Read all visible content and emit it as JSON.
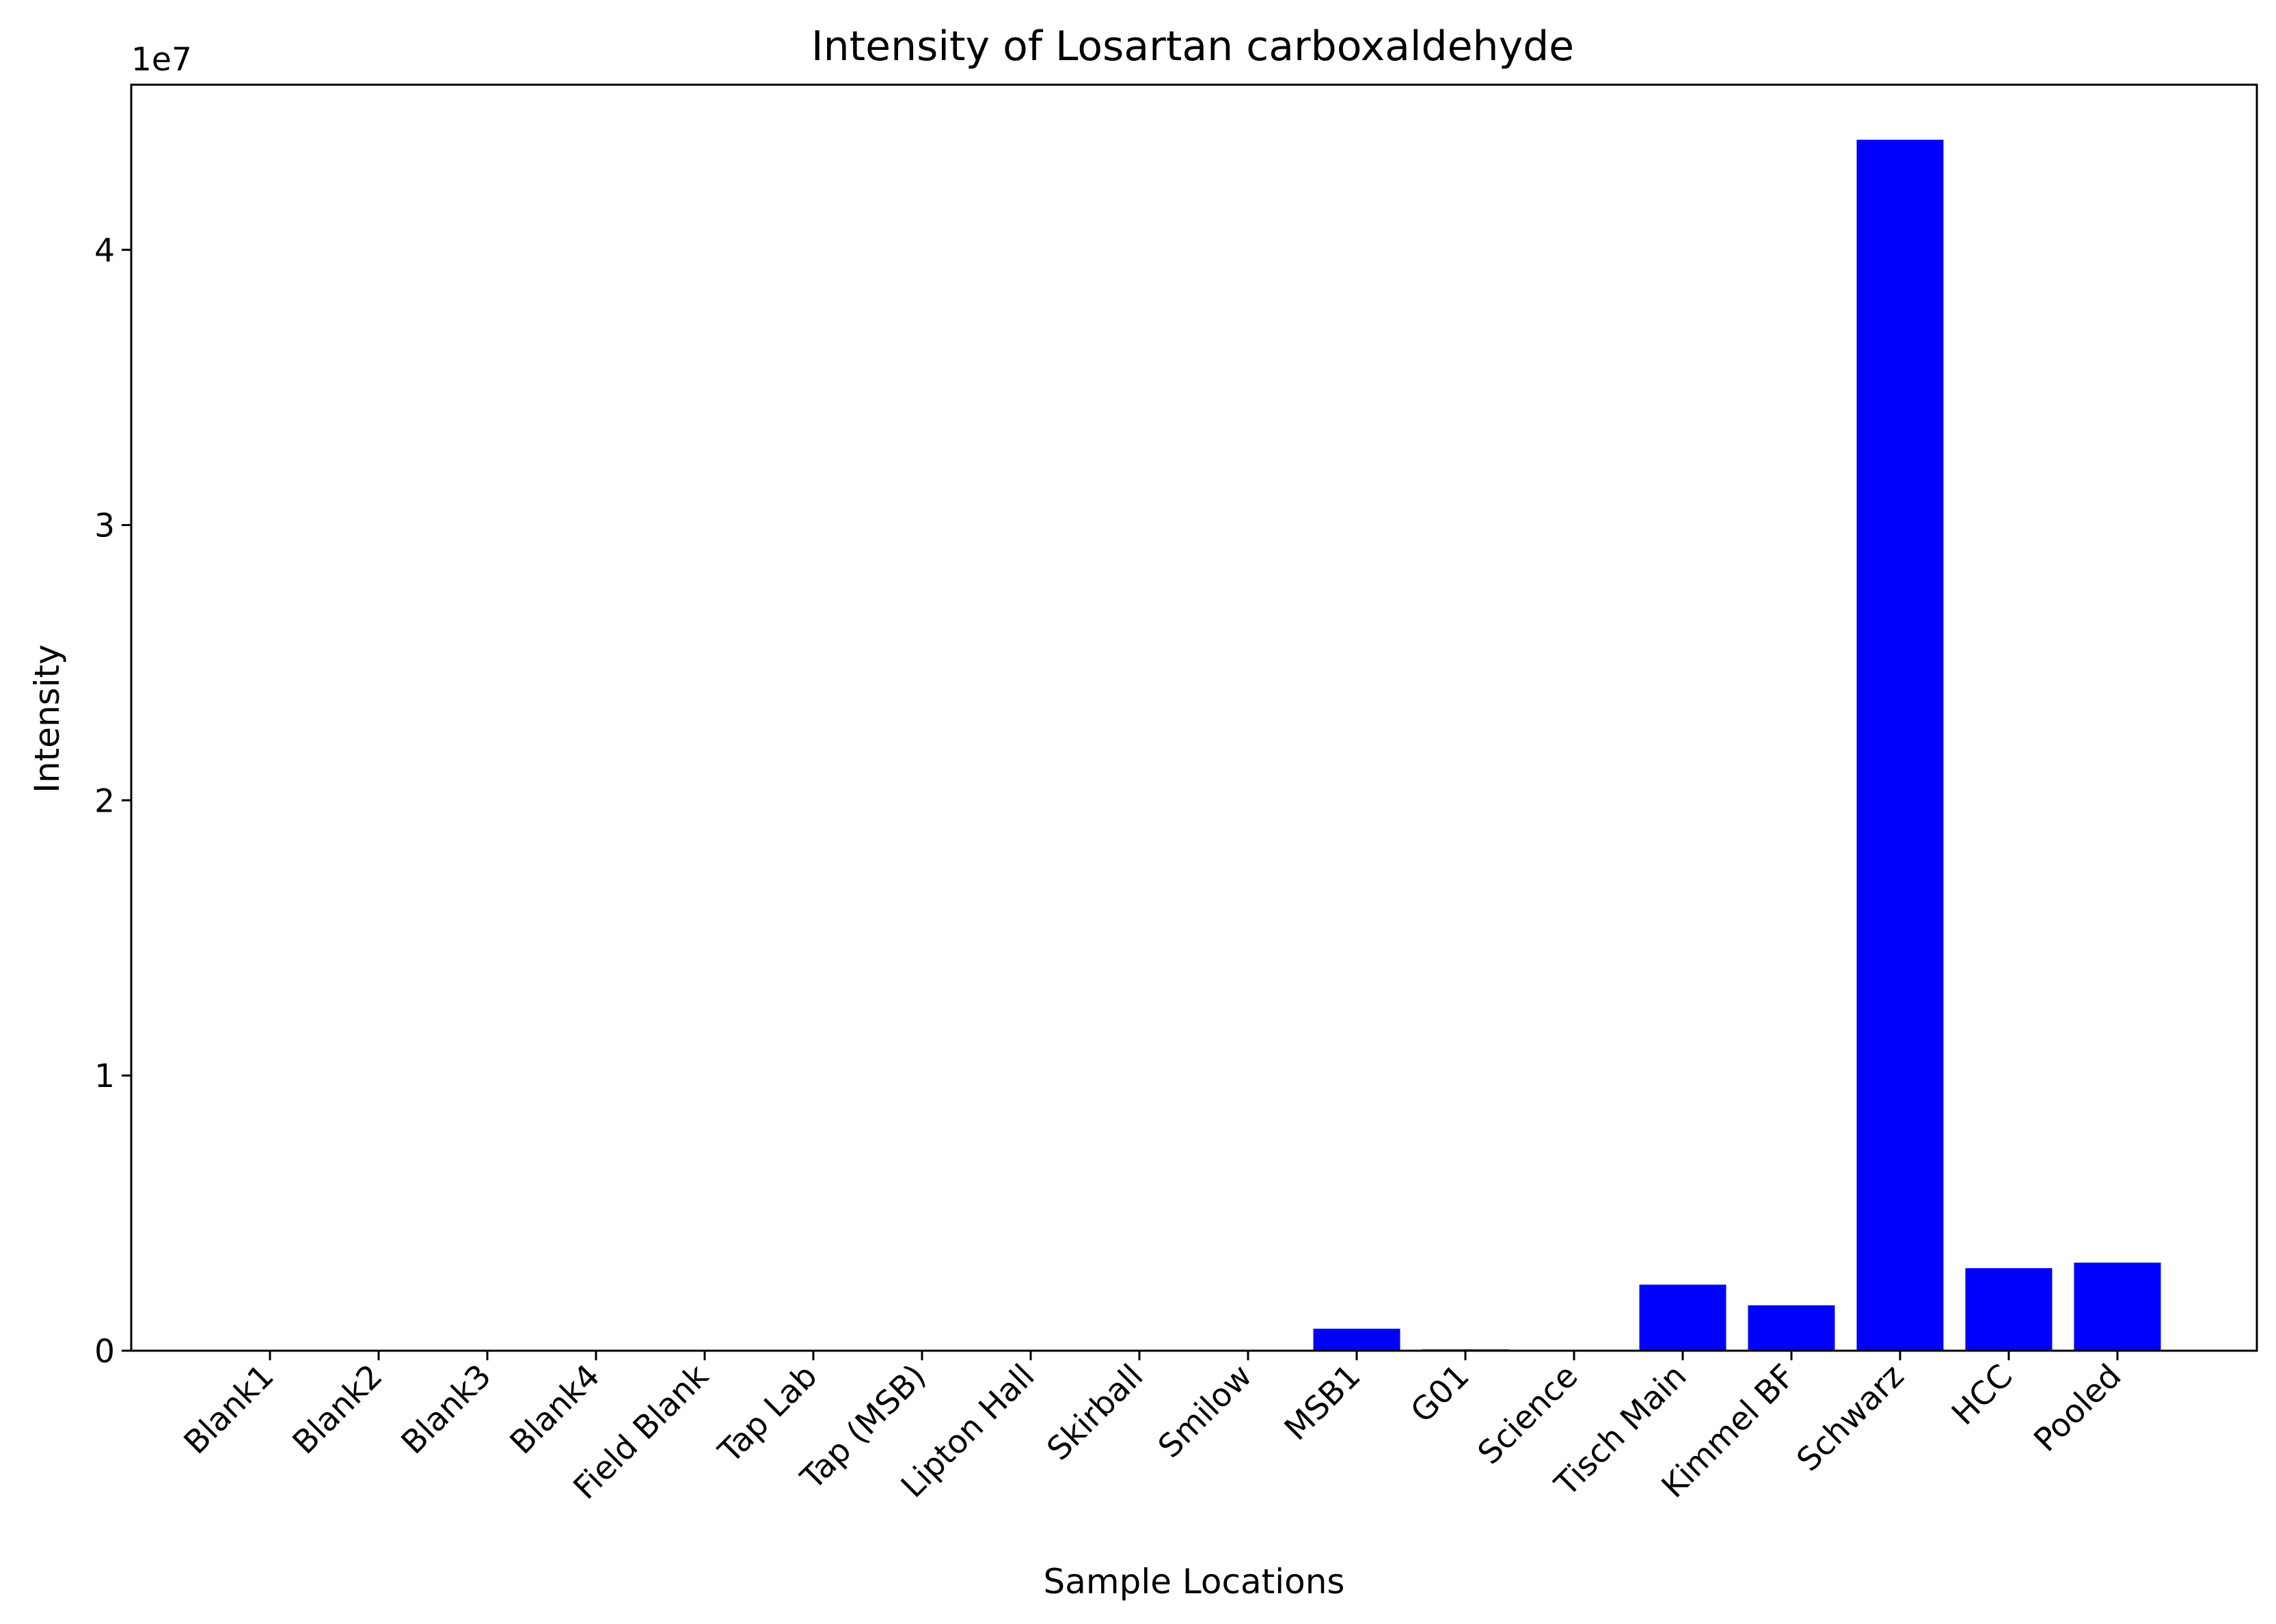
{
  "chart_data": {
    "type": "bar",
    "title": "Intensity of Losartan carboxaldehyde",
    "xlabel": "Sample Locations",
    "ylabel": "Intensity",
    "y_offset_label": "1e7",
    "ylim": [
      0,
      46000000
    ],
    "y_ticks": [
      0,
      10000000,
      20000000,
      30000000,
      40000000
    ],
    "y_tick_labels": [
      "0",
      "1",
      "2",
      "3",
      "4"
    ],
    "grid": false,
    "legend": "none",
    "bar_color": "#0000ff",
    "categories": [
      "Blank1",
      "Blank2",
      "Blank3",
      "Blank4",
      "Field Blank",
      "Tap Lab",
      "Tap (MSB)",
      "Lipton Hall",
      "Skirball",
      "Smilow",
      "MSB1",
      "G01",
      "Science",
      "Tisch Main",
      "Kimmel BF",
      "Schwarz",
      "HCC",
      "Pooled"
    ],
    "values": [
      0,
      0,
      0,
      0,
      0,
      0,
      0,
      0,
      0,
      0,
      800000,
      50000,
      0,
      2400000,
      1650000,
      44000000,
      3000000,
      3200000
    ]
  }
}
